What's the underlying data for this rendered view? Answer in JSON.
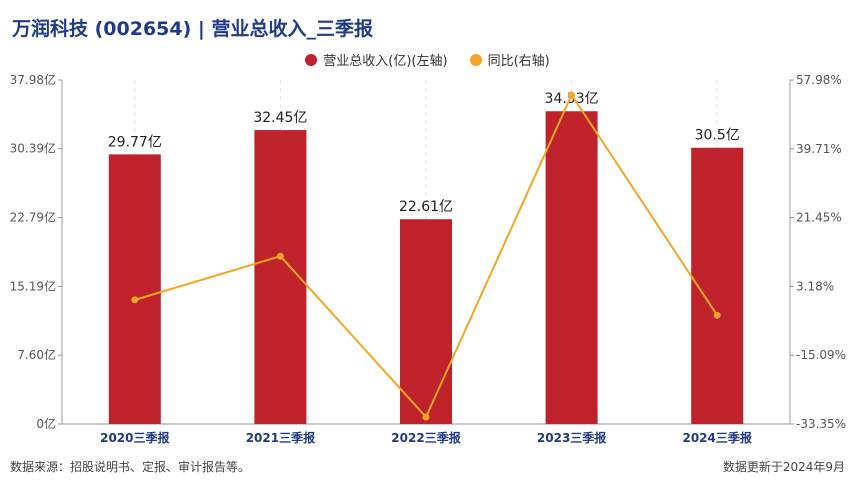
{
  "header": {
    "title": "万润科技 (002654) | 营业总收入_三季报"
  },
  "colors": {
    "bar": "#c0222b",
    "line": "#f5a623",
    "title": "#1f3a8a"
  },
  "chart_data": {
    "type": "bar",
    "categories": [
      "2020三季报",
      "2021三季报",
      "2022三季报",
      "2023三季报",
      "2024三季报"
    ],
    "series": [
      {
        "name": "营业总收入(亿)(左轴)",
        "type": "bar",
        "axis": "left",
        "values": [
          29.77,
          32.45,
          22.61,
          34.53,
          30.5
        ],
        "labels": [
          "29.77亿",
          "32.45亿",
          "22.61亿",
          "34.53亿",
          "30.5亿"
        ]
      },
      {
        "name": "同比(右轴)",
        "type": "line",
        "axis": "right",
        "values": [
          -0.4,
          11.2,
          -31.5,
          54.0,
          -4.5
        ]
      }
    ],
    "y_left": {
      "min": 0,
      "max": 37.98,
      "ticks": [
        0,
        7.6,
        15.19,
        22.79,
        30.39,
        37.98
      ],
      "tick_labels": [
        "0亿",
        "7.60亿",
        "15.19亿",
        "22.79亿",
        "30.39亿",
        "37.98亿"
      ]
    },
    "y_right": {
      "min": -33.35,
      "max": 57.98,
      "ticks": [
        -33.35,
        -15.09,
        3.18,
        21.45,
        39.71,
        57.98
      ],
      "tick_labels": [
        "-33.35%",
        "-15.09%",
        "3.18%",
        "21.45%",
        "39.71%",
        "57.98%"
      ]
    },
    "legend_position": "top-center",
    "grid": "vertical-dashed"
  },
  "footer": {
    "source": "数据来源：招股说明书、定报、审计报告等。",
    "update": "数据更新于2024年9月"
  }
}
